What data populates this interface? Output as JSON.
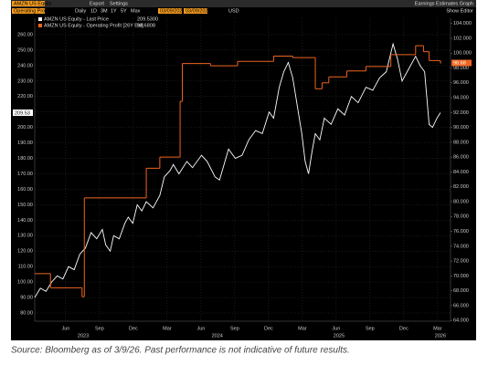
{
  "header": {
    "ticker": "AMZN US Equity",
    "export": "Export",
    "settings": "Settings",
    "function": "Earnings Estimates Graph",
    "field": "Operating Profit",
    "periodicity": "Daily",
    "ranges": [
      "1D",
      "3M",
      "1Y",
      "5Y",
      "Max"
    ],
    "start_date": "03/09/2023",
    "end_date": "03/09/2026",
    "currency": "USD",
    "editor": "Show Editor"
  },
  "chart_data": {
    "type": "line",
    "xlim": [
      0,
      36.9
    ],
    "xticks": [
      {
        "value": 2.75,
        "label": "Jun"
      },
      {
        "value": 5.75,
        "label": "Sep"
      },
      {
        "value": 8.75,
        "label": "Dec"
      },
      {
        "value": 11.75,
        "label": "Mar"
      },
      {
        "value": 14.75,
        "label": "Jun"
      },
      {
        "value": 17.75,
        "label": "Sep"
      },
      {
        "value": 20.75,
        "label": "Dec"
      },
      {
        "value": 23.75,
        "label": "Mar"
      },
      {
        "value": 26.75,
        "label": "Jun"
      },
      {
        "value": 29.75,
        "label": "Sep"
      },
      {
        "value": 32.75,
        "label": "Dec"
      },
      {
        "value": 35.75,
        "label": "Mar"
      }
    ],
    "year_ticks": [
      {
        "value": 4.3,
        "label": "2023"
      },
      {
        "value": 16.2,
        "label": "2024"
      },
      {
        "value": 27,
        "label": "2025"
      },
      {
        "value": 36,
        "label": "2026"
      }
    ],
    "ylim": [
      74.7,
      270.6
    ],
    "yticks": [
      {
        "value": 80,
        "label": "80.00"
      },
      {
        "value": 90,
        "label": "90.00"
      },
      {
        "value": 100,
        "label": "100.00"
      },
      {
        "value": 110,
        "label": "110.00"
      },
      {
        "value": 120,
        "label": "120.00"
      },
      {
        "value": 130,
        "label": "130.00"
      },
      {
        "value": 140,
        "label": "140.00"
      },
      {
        "value": 150,
        "label": "150.00"
      },
      {
        "value": 160,
        "label": "160.00"
      },
      {
        "value": 170,
        "label": "170.00"
      },
      {
        "value": 180,
        "label": "180.00"
      },
      {
        "value": 190,
        "label": "190.00"
      },
      {
        "value": 200,
        "label": "200.00"
      },
      {
        "value": 210,
        "label": "210.00"
      },
      {
        "value": 220,
        "label": "220.00"
      },
      {
        "value": 230,
        "label": "230.00"
      },
      {
        "value": 240,
        "label": "240.00"
      },
      {
        "value": 250,
        "label": "250.00"
      },
      {
        "value": 260,
        "label": "260.00"
      }
    ],
    "y2lim": [
      63.9,
      104.7
    ],
    "y2ticks": [
      {
        "value": 64,
        "label": "64.000"
      },
      {
        "value": 66,
        "label": "66.000"
      },
      {
        "value": 68,
        "label": "68.000"
      },
      {
        "value": 70,
        "label": "70.000"
      },
      {
        "value": 72,
        "label": "72.000"
      },
      {
        "value": 74,
        "label": "74.000"
      },
      {
        "value": 76,
        "label": "76.000"
      },
      {
        "value": 78,
        "label": "78.000"
      },
      {
        "value": 80,
        "label": "80.000"
      },
      {
        "value": 82,
        "label": "82.000"
      },
      {
        "value": 84,
        "label": "84.000"
      },
      {
        "value": 86,
        "label": "86.000"
      },
      {
        "value": 88,
        "label": "88.000"
      },
      {
        "value": 90,
        "label": "90.000"
      },
      {
        "value": 92,
        "label": "92.000"
      },
      {
        "value": 94,
        "label": "94.000"
      },
      {
        "value": 96,
        "label": "96.000"
      },
      {
        "value": 98,
        "label": "98.000"
      },
      {
        "value": 100,
        "label": "100.000"
      },
      {
        "value": 102,
        "label": "102.000"
      },
      {
        "value": 104,
        "label": "104.000"
      }
    ],
    "grid": true,
    "series": [
      {
        "name": "AMZN US Equity - Last Price",
        "color": "#ffffff",
        "legend_value": "209.5300",
        "axis_tag": "209.53",
        "x": [
          0,
          0.5,
          1,
          1.5,
          2,
          2.5,
          3,
          3.5,
          4,
          4.5,
          5,
          5.5,
          6,
          6.3,
          6.7,
          7,
          7.5,
          8,
          8.3,
          8.7,
          9.1,
          9.5,
          9.9,
          10.5,
          11.1,
          11.5,
          12,
          12.3,
          12.8,
          13.5,
          14,
          14.8,
          15.3,
          16,
          16.4,
          16.8,
          17.2,
          17.8,
          18.4,
          19,
          19.6,
          20.2,
          20.8,
          21.2,
          21.7,
          22.1,
          22.5,
          22.9,
          23.3,
          23.7,
          24,
          24.3,
          24.6,
          24.9,
          25.3,
          25.7,
          26.3,
          26.9,
          27.5,
          28.1,
          28.7,
          29.4,
          30,
          30.6,
          31.2,
          31.8,
          32.2,
          32.6,
          33.2,
          33.8,
          34.2,
          34.6,
          35,
          35.3,
          35.7,
          36
        ],
        "values": [
          90,
          96,
          94,
          100,
          104,
          102,
          110,
          108,
          118,
          122,
          132,
          128,
          134,
          124,
          120,
          130,
          128,
          138,
          142,
          138,
          150,
          146,
          152,
          148,
          156,
          168,
          172,
          176,
          170,
          178,
          174,
          182,
          178,
          168,
          166,
          176,
          186,
          180,
          182,
          192,
          198,
          196,
          210,
          206,
          226,
          236,
          242,
          232,
          214,
          196,
          178,
          170,
          184,
          196,
          192,
          206,
          202,
          212,
          208,
          220,
          216,
          226,
          224,
          232,
          236,
          254,
          244,
          230,
          238,
          246,
          240,
          236,
          202,
          200,
          206,
          209.53
        ]
      },
      {
        "name": "AMZN US Equity - Operating Profit [26Y Est]",
        "color": "#f0641e",
        "axis": "y2",
        "step": true,
        "legend_value": "98.6808",
        "axis_tag": "98.68",
        "x": [
          0,
          1.4,
          4.2,
          4.4,
          9.9,
          11.1,
          12.9,
          13.1,
          15.6,
          18,
          21.2,
          22.9,
          24.9,
          25.5,
          26.1,
          27.7,
          29.4,
          31.6,
          33.8,
          34.5,
          35,
          36
        ],
        "values": [
          70.3,
          68.4,
          67.2,
          80.5,
          84.5,
          86.0,
          93.5,
          98.6,
          98.3,
          98.9,
          99.6,
          99.4,
          95.2,
          96.0,
          96.8,
          97.6,
          98.2,
          99.8,
          101.0,
          100.2,
          99.0,
          98.6808
        ]
      }
    ]
  },
  "footnote": "Source: Bloomberg as of 3/9/26. Past performance is not indicative of future results."
}
